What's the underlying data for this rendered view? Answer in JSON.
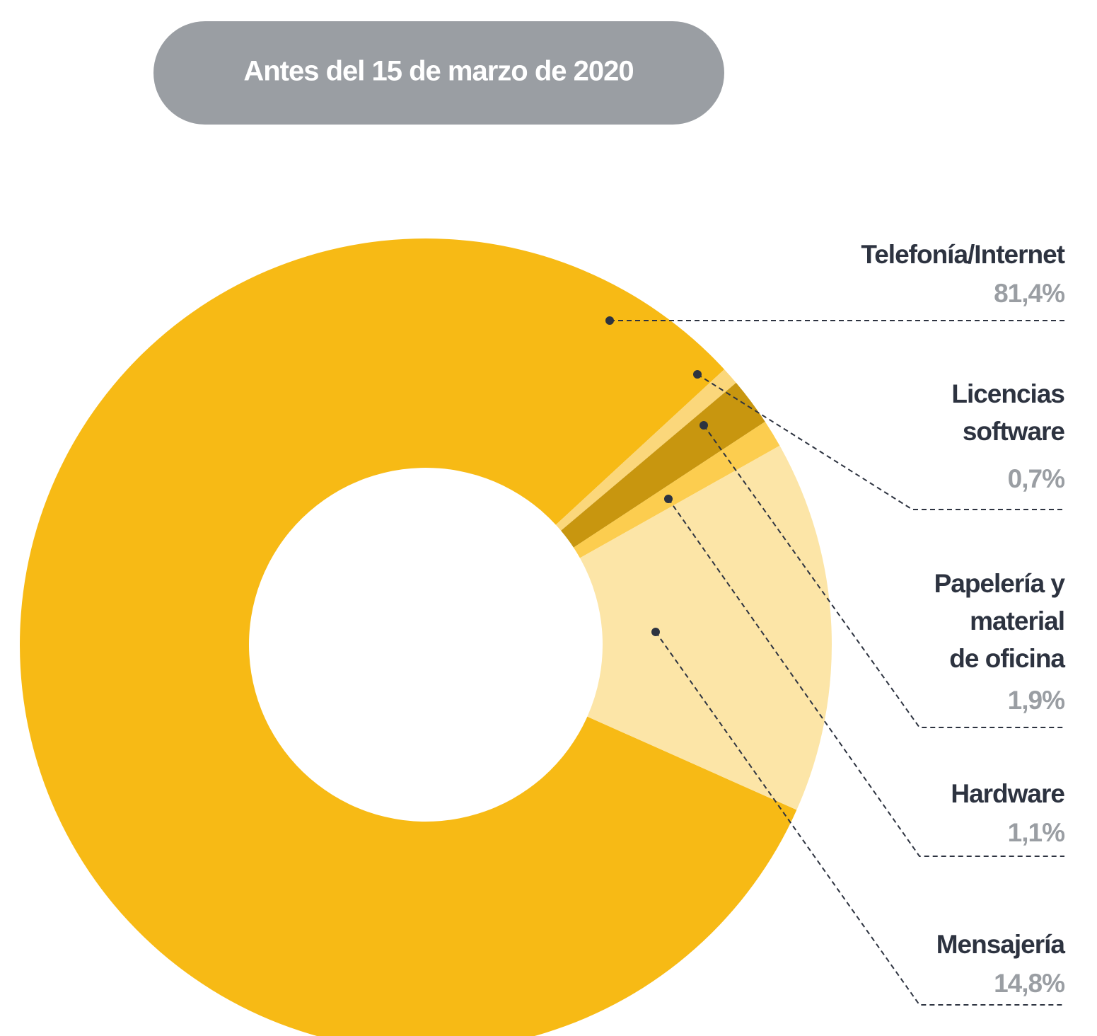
{
  "chart_data": {
    "type": "donut",
    "title": "Antes del 15 de marzo de 2020",
    "categories": [
      "Telefonía/Internet",
      "Licencias\nsoftware",
      "Papelería y\nmaterial\nde oficina",
      "Hardware",
      "Mensajería"
    ],
    "values": [
      81.4,
      0.7,
      1.9,
      1.1,
      14.8
    ],
    "value_labels": [
      "81,4%",
      "0,7%",
      "1,9%",
      "1,1%",
      "14,8%"
    ],
    "colors": [
      "#f7ba15",
      "#fbd77b",
      "#c8960f",
      "#fccd4f",
      "#fce5a7"
    ]
  }
}
